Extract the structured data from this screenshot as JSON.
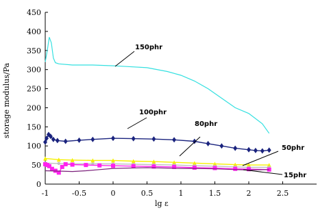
{
  "chart_data": {
    "type": "line",
    "title": "",
    "xlabel": "lg ε",
    "ylabel": "storage modulus/Pa",
    "xlim": [
      -1,
      3
    ],
    "ylim": [
      0,
      450
    ],
    "x_ticks": [
      "-1",
      "-0.5",
      "0",
      "0.5",
      "1",
      "1.5",
      "2",
      "2.5"
    ],
    "y_ticks": [
      "0",
      "50",
      "100",
      "150",
      "200",
      "250",
      "300",
      "350",
      "400",
      "450"
    ],
    "grid": false,
    "legend": "none",
    "series": [
      {
        "name": "150phr",
        "color": "#33e0e0",
        "marker": "none",
        "points": [
          [
            -1.0,
            320
          ],
          [
            -0.97,
            350
          ],
          [
            -0.94,
            385
          ],
          [
            -0.91,
            370
          ],
          [
            -0.88,
            330
          ],
          [
            -0.85,
            318
          ],
          [
            -0.8,
            315
          ],
          [
            -0.6,
            312
          ],
          [
            -0.3,
            312
          ],
          [
            0.0,
            310
          ],
          [
            0.2,
            308
          ],
          [
            0.5,
            305
          ],
          [
            0.8,
            295
          ],
          [
            1.0,
            285
          ],
          [
            1.2,
            270
          ],
          [
            1.4,
            250
          ],
          [
            1.6,
            225
          ],
          [
            1.8,
            200
          ],
          [
            2.0,
            185
          ],
          [
            2.2,
            158
          ],
          [
            2.3,
            133
          ]
        ]
      },
      {
        "name": "100phr",
        "color": "#1a237e",
        "marker": "diamond",
        "points": [
          [
            -1.0,
            110
          ],
          [
            -0.98,
            120
          ],
          [
            -0.95,
            130
          ],
          [
            -0.92,
            125
          ],
          [
            -0.88,
            117
          ],
          [
            -0.82,
            114
          ],
          [
            -0.7,
            112
          ],
          [
            -0.5,
            115
          ],
          [
            -0.3,
            117
          ],
          [
            0.0,
            120
          ],
          [
            0.3,
            119
          ],
          [
            0.6,
            118
          ],
          [
            0.9,
            116
          ],
          [
            1.2,
            112
          ],
          [
            1.4,
            106
          ],
          [
            1.6,
            100
          ],
          [
            1.8,
            94
          ],
          [
            2.0,
            90
          ],
          [
            2.1,
            88
          ],
          [
            2.2,
            87
          ],
          [
            2.3,
            89
          ]
        ]
      },
      {
        "name": "80phr",
        "color": "#f5f000",
        "marker": "triangle",
        "points": [
          [
            -1.0,
            67
          ],
          [
            -0.8,
            64
          ],
          [
            -0.6,
            63
          ],
          [
            -0.3,
            62
          ],
          [
            0.0,
            62
          ],
          [
            0.3,
            60
          ],
          [
            0.6,
            59
          ],
          [
            0.9,
            57
          ],
          [
            1.2,
            55
          ],
          [
            1.5,
            53
          ],
          [
            1.8,
            51
          ],
          [
            2.0,
            50
          ],
          [
            2.3,
            50
          ]
        ]
      },
      {
        "name": "50phr",
        "color": "#c0c0c0",
        "marker": "circle",
        "points": [
          [
            -1.0,
            55
          ],
          [
            -0.8,
            54
          ],
          [
            -0.6,
            53
          ],
          [
            -0.3,
            53
          ],
          [
            0.0,
            53
          ],
          [
            0.3,
            52
          ],
          [
            0.6,
            51
          ],
          [
            0.9,
            50
          ],
          [
            1.2,
            48
          ],
          [
            1.5,
            47
          ],
          [
            1.8,
            45
          ],
          [
            2.0,
            44
          ],
          [
            2.3,
            44
          ]
        ]
      },
      {
        "name": "15phr",
        "color": "#ff22ee",
        "marker": "square",
        "points": [
          [
            -1.0,
            52
          ],
          [
            -0.97,
            50
          ],
          [
            -0.94,
            47
          ],
          [
            -0.9,
            40
          ],
          [
            -0.85,
            35
          ],
          [
            -0.8,
            30
          ],
          [
            -0.75,
            45
          ],
          [
            -0.7,
            52
          ],
          [
            -0.6,
            51
          ],
          [
            -0.4,
            50
          ],
          [
            -0.2,
            49
          ],
          [
            0.0,
            48
          ],
          [
            0.3,
            47
          ],
          [
            0.6,
            46
          ],
          [
            0.9,
            45
          ],
          [
            1.2,
            43
          ],
          [
            1.5,
            42
          ],
          [
            1.8,
            40
          ],
          [
            2.0,
            39
          ],
          [
            2.3,
            38
          ]
        ]
      },
      {
        "name": "",
        "color": "#7a1f7a",
        "marker": "none",
        "points": [
          [
            -1.0,
            35
          ],
          [
            -0.8,
            34
          ],
          [
            -0.6,
            33
          ],
          [
            -0.4,
            35
          ],
          [
            -0.2,
            38
          ],
          [
            0.0,
            41
          ],
          [
            0.2,
            42
          ],
          [
            0.5,
            43
          ],
          [
            0.8,
            42
          ],
          [
            1.0,
            41
          ],
          [
            1.2,
            41
          ],
          [
            1.5,
            40
          ],
          [
            1.8,
            38
          ],
          [
            2.0,
            37
          ],
          [
            2.3,
            38
          ]
        ]
      }
    ],
    "annotations": [
      "150phr",
      "100phr",
      "80phr",
      "50phr",
      "15phr"
    ]
  }
}
